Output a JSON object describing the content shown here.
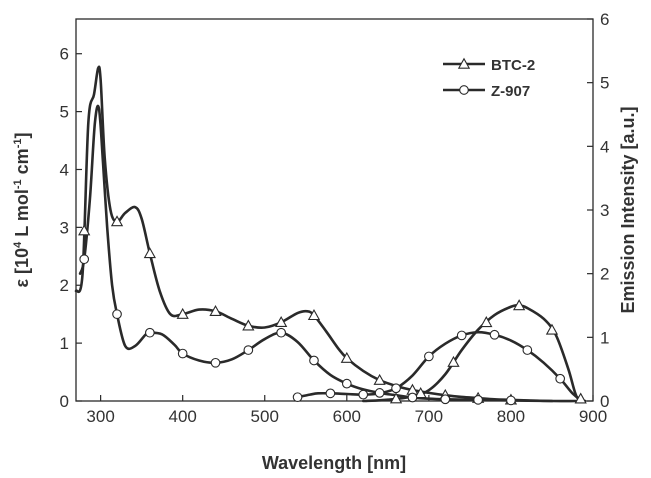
{
  "chart_data": {
    "type": "line",
    "xlabel": "Wavelength [nm]",
    "ylabel_left_main": "ε [10",
    "ylabel_left_sup1": "4",
    "ylabel_left_mid": " L mol",
    "ylabel_left_sup2": "-1",
    "ylabel_left_mid2": " cm",
    "ylabel_left_sup3": "-1",
    "ylabel_left_end": "]",
    "ylabel_right": "Emission Intensity [a.u.]",
    "xlim": [
      270,
      900
    ],
    "ylim_left": [
      0,
      6.6
    ],
    "ylim_right": [
      0,
      6
    ],
    "x_ticks": [
      300,
      400,
      500,
      600,
      700,
      800,
      900
    ],
    "x_tick_labels": [
      "300",
      "400",
      "500",
      "600",
      "700",
      "800",
      "900"
    ],
    "y_left_ticks": [
      0,
      1,
      2,
      3,
      4,
      5,
      6
    ],
    "y_left_tick_labels": [
      "0",
      "1",
      "2",
      "3",
      "4",
      "5",
      "6"
    ],
    "y_right_ticks": [
      0,
      1,
      2,
      3,
      4,
      5,
      6
    ],
    "y_right_tick_labels": [
      "0",
      "1",
      "2",
      "3",
      "4",
      "5",
      "6"
    ],
    "grid": false,
    "legend_position": "top-right",
    "series": [
      {
        "name": "BTC-2",
        "marker": "triangle",
        "axis": "left",
        "kind": "absorption",
        "x": [
          270,
          278,
          285,
          292,
          297,
          300,
          305,
          312,
          320,
          330,
          342,
          350,
          360,
          372,
          385,
          400,
          420,
          440,
          460,
          480,
          500,
          520,
          540,
          552,
          560,
          575,
          590,
          600,
          620,
          640,
          660,
          680,
          700,
          720,
          740,
          760,
          780,
          800,
          820,
          850,
          880,
          890
        ],
        "y": [
          1.9,
          2.2,
          4.8,
          5.3,
          5.75,
          5.55,
          4.2,
          3.3,
          3.1,
          3.25,
          3.35,
          3.15,
          2.55,
          1.9,
          1.5,
          1.5,
          1.58,
          1.55,
          1.42,
          1.3,
          1.27,
          1.36,
          1.52,
          1.55,
          1.48,
          1.2,
          0.9,
          0.74,
          0.52,
          0.36,
          0.26,
          0.19,
          0.14,
          0.1,
          0.07,
          0.05,
          0.03,
          0.02,
          0.01,
          0.0,
          0.0,
          0.0
        ]
      },
      {
        "name": "BTC-2",
        "marker": "triangle",
        "axis": "right",
        "kind": "emission",
        "x": [
          620,
          650,
          680,
          700,
          720,
          740,
          760,
          780,
          800,
          810,
          820,
          840,
          855,
          870,
          880,
          890
        ],
        "y": [
          0.0,
          0.02,
          0.07,
          0.17,
          0.42,
          0.8,
          1.12,
          1.35,
          1.48,
          1.5,
          1.46,
          1.29,
          1.03,
          0.5,
          0.07,
          0.0
        ]
      },
      {
        "name": "Z-907",
        "marker": "circle",
        "axis": "left",
        "kind": "absorption",
        "x": [
          275,
          280,
          287,
          293,
          298,
          303,
          308,
          314,
          320,
          330,
          342,
          355,
          360,
          375,
          390,
          400,
          420,
          440,
          460,
          480,
          500,
          520,
          540,
          560,
          580,
          600,
          620,
          640,
          660,
          680,
          700,
          720,
          760,
          800,
          850
        ],
        "y": [
          2.2,
          2.45,
          3.5,
          4.8,
          5.05,
          4.1,
          3.0,
          2.0,
          1.5,
          0.95,
          0.95,
          1.15,
          1.18,
          1.15,
          0.97,
          0.82,
          0.7,
          0.66,
          0.72,
          0.88,
          1.07,
          1.18,
          1.02,
          0.7,
          0.45,
          0.3,
          0.2,
          0.14,
          0.1,
          0.06,
          0.04,
          0.03,
          0.02,
          0.01,
          0.0
        ]
      },
      {
        "name": "Z-907",
        "marker": "circle",
        "axis": "right",
        "kind": "emission",
        "x": [
          540,
          555,
          565,
          580,
          600,
          620,
          640,
          660,
          680,
          700,
          720,
          740,
          760,
          780,
          800,
          820,
          840,
          860,
          875,
          885,
          890
        ],
        "y": [
          0.06,
          0.1,
          0.12,
          0.12,
          0.11,
          0.1,
          0.12,
          0.2,
          0.4,
          0.7,
          0.9,
          1.03,
          1.08,
          1.04,
          0.95,
          0.8,
          0.6,
          0.35,
          0.12,
          0.02,
          0.0
        ]
      }
    ],
    "markers": [
      {
        "series": "BTC-2",
        "kind": "absorption",
        "x": [
          280,
          320,
          360,
          400,
          440,
          480,
          520,
          560,
          600,
          640,
          680,
          720,
          760,
          800
        ]
      },
      {
        "series": "BTC-2",
        "kind": "emission",
        "x": [
          660,
          690,
          730,
          770,
          810,
          850,
          885
        ]
      },
      {
        "series": "Z-907",
        "kind": "absorption",
        "x": [
          280,
          320,
          360,
          400,
          440,
          480,
          520,
          560,
          600,
          640,
          680,
          720,
          760,
          800
        ]
      },
      {
        "series": "Z-907",
        "kind": "emission",
        "x": [
          540,
          580,
          620,
          660,
          700,
          740,
          780,
          820,
          860
        ]
      }
    ]
  }
}
